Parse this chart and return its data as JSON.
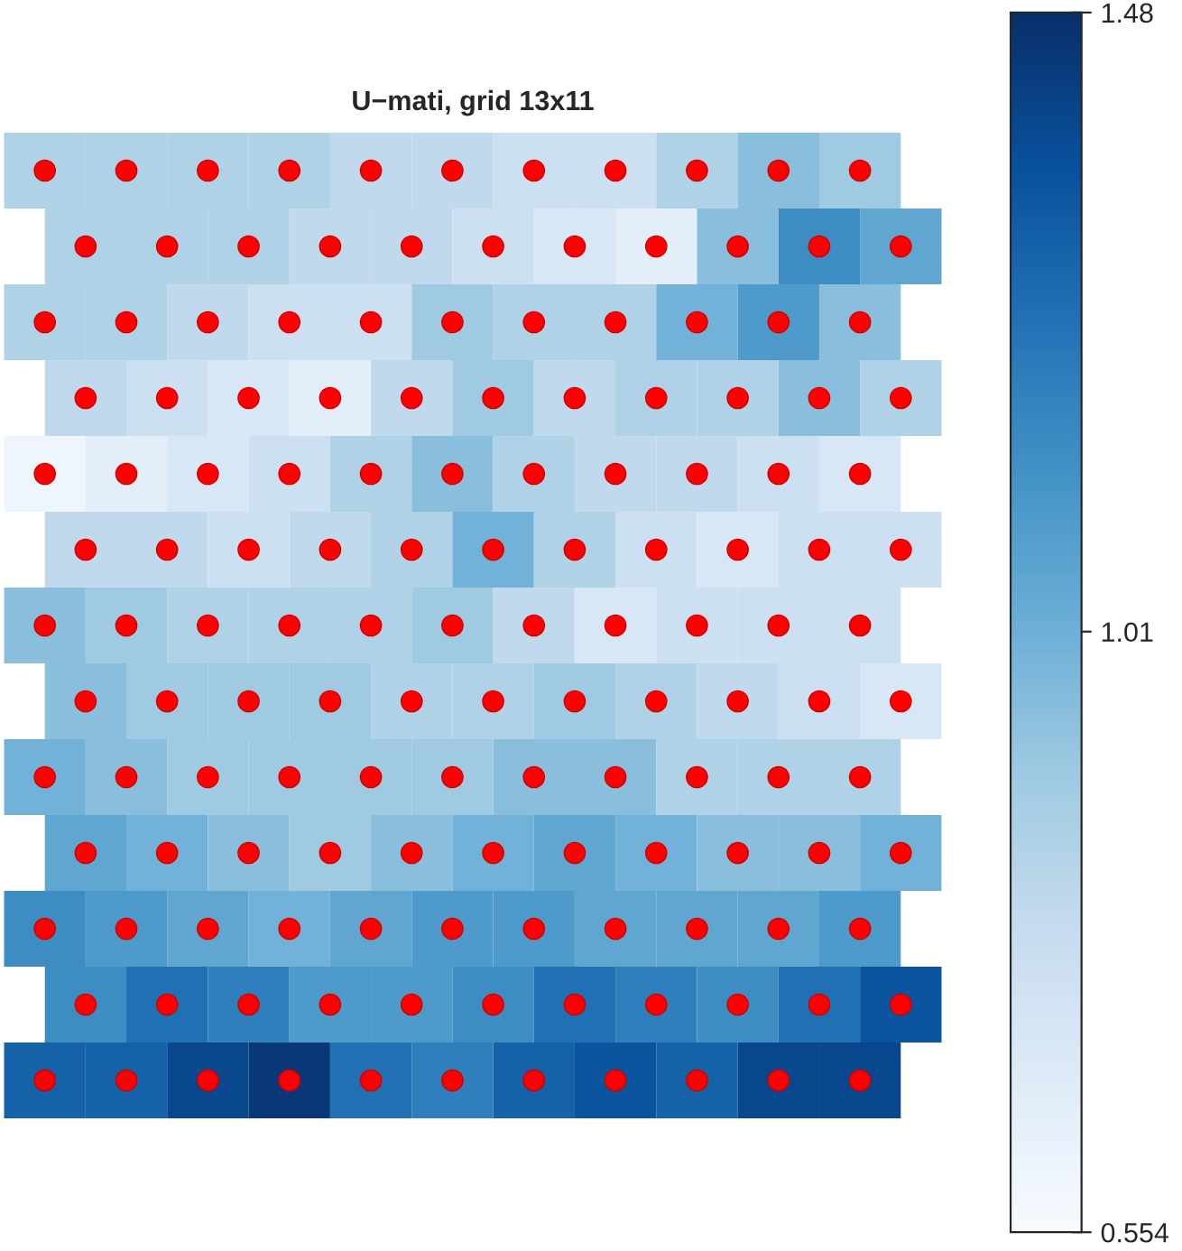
{
  "chart_data": {
    "type": "heatmap",
    "title": "U−mati, grid 13x11",
    "categories": [
      null,
      null,
      null,
      null,
      null,
      null,
      null,
      null,
      null,
      null,
      null
    ],
    "y_categories": [
      null,
      null,
      null,
      null,
      null,
      null,
      null,
      null,
      null,
      null,
      null,
      null,
      null
    ],
    "cells": [
      [
        0.85,
        0.85,
        0.85,
        0.85,
        0.8,
        0.8,
        0.75,
        0.75,
        0.85,
        0.95,
        0.9
      ],
      [
        0.85,
        0.85,
        0.85,
        0.8,
        0.8,
        0.75,
        0.7,
        0.65,
        0.95,
        1.15,
        1.05
      ],
      [
        0.85,
        0.85,
        0.8,
        0.75,
        0.75,
        0.9,
        0.85,
        0.85,
        1.0,
        1.1,
        0.95
      ],
      [
        0.8,
        0.75,
        0.7,
        0.65,
        0.8,
        0.9,
        0.8,
        0.85,
        0.85,
        0.95,
        0.85
      ],
      [
        0.6,
        0.65,
        0.7,
        0.75,
        0.85,
        0.95,
        0.85,
        0.8,
        0.8,
        0.75,
        0.7
      ],
      [
        0.8,
        0.8,
        0.75,
        0.8,
        0.85,
        1.0,
        0.85,
        0.75,
        0.7,
        0.75,
        0.75
      ],
      [
        0.95,
        0.9,
        0.85,
        0.85,
        0.85,
        0.9,
        0.8,
        0.7,
        0.75,
        0.75,
        0.75
      ],
      [
        0.95,
        0.9,
        0.9,
        0.9,
        0.85,
        0.85,
        0.9,
        0.85,
        0.8,
        0.75,
        0.7
      ],
      [
        1.0,
        0.95,
        0.9,
        0.9,
        0.9,
        0.9,
        0.95,
        0.95,
        0.85,
        0.85,
        0.85
      ],
      [
        1.05,
        1.0,
        0.95,
        0.9,
        0.95,
        1.0,
        1.05,
        1.0,
        0.95,
        0.95,
        1.0
      ],
      [
        1.15,
        1.1,
        1.05,
        1.0,
        1.05,
        1.1,
        1.1,
        1.05,
        1.05,
        1.05,
        1.1
      ],
      [
        1.15,
        1.25,
        1.2,
        1.1,
        1.1,
        1.15,
        1.25,
        1.2,
        1.15,
        1.25,
        1.35
      ],
      [
        1.3,
        1.3,
        1.4,
        1.45,
        1.25,
        1.2,
        1.3,
        1.35,
        1.3,
        1.4,
        1.4
      ]
    ],
    "clim": [
      0.554,
      1.48
    ],
    "cticks": [
      0.554,
      1.01,
      1.48
    ]
  }
}
